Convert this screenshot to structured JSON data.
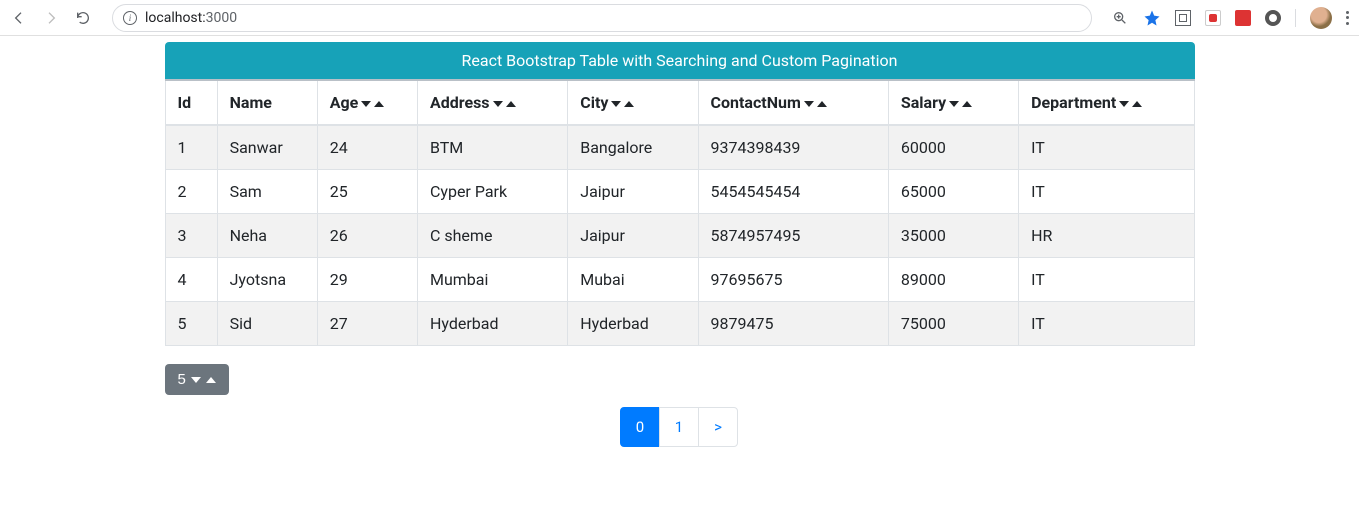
{
  "browser": {
    "url_host": "localhost:",
    "url_port": "3000"
  },
  "header": {
    "title": "React Bootstrap Table with Searching and Custom Pagination"
  },
  "table": {
    "columns": [
      {
        "label": "Id",
        "sortable": false
      },
      {
        "label": "Name",
        "sortable": false
      },
      {
        "label": "Age",
        "sortable": true
      },
      {
        "label": "Address",
        "sortable": true
      },
      {
        "label": "City",
        "sortable": true
      },
      {
        "label": "ContactNum",
        "sortable": true
      },
      {
        "label": "Salary",
        "sortable": true
      },
      {
        "label": "Department",
        "sortable": true
      }
    ],
    "rows": [
      [
        "1",
        "Sanwar",
        "24",
        "BTM",
        "Bangalore",
        "9374398439",
        "60000",
        "IT"
      ],
      [
        "2",
        "Sam",
        "25",
        "Cyper Park",
        "Jaipur",
        "5454545454",
        "65000",
        "IT"
      ],
      [
        "3",
        "Neha",
        "26",
        "C sheme",
        "Jaipur",
        "5874957495",
        "35000",
        "HR"
      ],
      [
        "4",
        "Jyotsna",
        "29",
        "Mumbai",
        "Mubai",
        "97695675",
        "89000",
        "IT"
      ],
      [
        "5",
        "Sid",
        "27",
        "Hyderbad",
        "Hyderbad",
        "9879475",
        "75000",
        "IT"
      ]
    ]
  },
  "page_size": {
    "value": "5"
  },
  "pagination": {
    "pages": [
      "0",
      "1"
    ],
    "active_index": 0,
    "next_label": ">"
  }
}
